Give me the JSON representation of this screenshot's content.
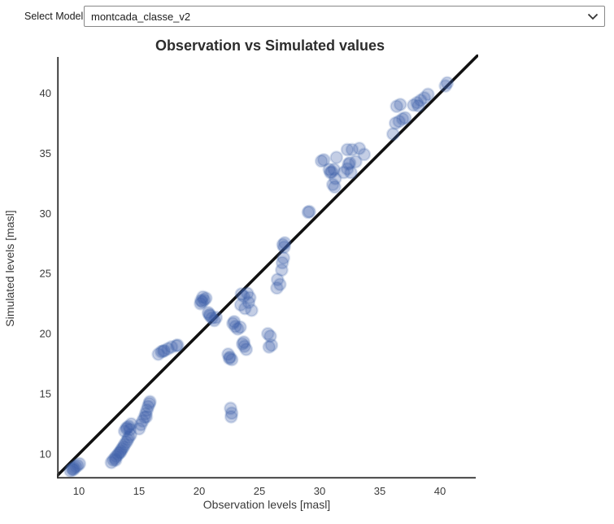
{
  "model_selector": {
    "label": "Select Model:",
    "value": "montcada_classe_v2",
    "chevron_icon": "chevron-down"
  },
  "chart_data": {
    "type": "scatter",
    "title": "Observation vs Simulated values",
    "xlabel": "Observation levels [masl]",
    "ylabel": "Simulated levels [masl]",
    "xlim": [
      8.31,
      42.97
    ],
    "ylim": [
      8.04,
      42.97
    ],
    "x_ticks": [
      10,
      15,
      20,
      25,
      30,
      35,
      40
    ],
    "y_ticks": [
      10,
      15,
      20,
      25,
      30,
      35,
      40
    ],
    "grid": false,
    "legend": "none",
    "identity_line": {
      "shown": true,
      "color": "#111111",
      "width": 3.6
    },
    "marker": {
      "color": "#3a5da8",
      "radius": 7.2,
      "opacity": 0.3
    },
    "series": [
      {
        "name": "observation-vs-simulated",
        "points": [
          [
            9.3,
            8.6
          ],
          [
            9.45,
            8.75
          ],
          [
            9.6,
            8.85
          ],
          [
            9.75,
            8.95
          ],
          [
            9.9,
            9.05
          ],
          [
            10.05,
            9.2
          ],
          [
            9.55,
            8.7
          ],
          [
            12.7,
            9.3
          ],
          [
            12.85,
            9.5
          ],
          [
            13.0,
            9.65
          ],
          [
            13.1,
            9.8
          ],
          [
            13.25,
            9.95
          ],
          [
            13.35,
            10.1
          ],
          [
            13.5,
            10.3
          ],
          [
            13.6,
            10.45
          ],
          [
            13.7,
            10.6
          ],
          [
            13.8,
            10.8
          ],
          [
            13.95,
            11.0
          ],
          [
            14.05,
            11.2
          ],
          [
            14.15,
            11.4
          ],
          [
            14.3,
            11.6
          ],
          [
            13.05,
            9.5
          ],
          [
            13.45,
            10.15
          ],
          [
            13.8,
            11.9
          ],
          [
            13.95,
            12.1
          ],
          [
            14.15,
            12.3
          ],
          [
            14.35,
            12.5
          ],
          [
            14.0,
            12.2
          ],
          [
            14.25,
            12.05
          ],
          [
            15.0,
            12.1
          ],
          [
            15.15,
            12.45
          ],
          [
            15.3,
            12.75
          ],
          [
            15.45,
            13.05
          ],
          [
            15.55,
            13.35
          ],
          [
            15.65,
            13.65
          ],
          [
            15.75,
            13.95
          ],
          [
            15.85,
            14.2
          ],
          [
            15.6,
            13.1
          ],
          [
            15.9,
            14.35
          ],
          [
            16.6,
            18.3
          ],
          [
            16.85,
            18.5
          ],
          [
            17.1,
            18.6
          ],
          [
            17.4,
            18.75
          ],
          [
            17.7,
            18.9
          ],
          [
            18.1,
            19.0
          ],
          [
            17.0,
            18.55
          ],
          [
            18.2,
            19.05
          ],
          [
            20.1,
            22.5
          ],
          [
            20.25,
            22.65
          ],
          [
            20.4,
            22.8
          ],
          [
            20.55,
            22.95
          ],
          [
            20.3,
            23.05
          ],
          [
            20.15,
            22.75
          ],
          [
            20.75,
            21.75
          ],
          [
            20.9,
            21.5
          ],
          [
            21.05,
            21.3
          ],
          [
            21.25,
            21.1
          ],
          [
            21.4,
            21.35
          ],
          [
            20.85,
            21.6
          ],
          [
            22.4,
            18.3
          ],
          [
            22.55,
            18.05
          ],
          [
            22.7,
            17.85
          ],
          [
            22.5,
            17.95
          ],
          [
            23.6,
            19.15
          ],
          [
            23.75,
            18.95
          ],
          [
            23.9,
            18.7
          ],
          [
            23.7,
            19.3
          ],
          [
            22.8,
            20.85
          ],
          [
            23.0,
            20.6
          ],
          [
            23.2,
            20.4
          ],
          [
            23.4,
            20.55
          ],
          [
            22.9,
            21.0
          ],
          [
            23.5,
            23.3
          ],
          [
            23.7,
            23.1
          ],
          [
            24.0,
            23.35
          ],
          [
            24.2,
            23.0
          ],
          [
            23.45,
            22.4
          ],
          [
            23.8,
            22.1
          ],
          [
            24.35,
            21.95
          ],
          [
            24.1,
            22.6
          ],
          [
            25.7,
            20.0
          ],
          [
            25.9,
            19.8
          ],
          [
            25.8,
            18.9
          ],
          [
            26.0,
            19.05
          ],
          [
            26.5,
            24.5
          ],
          [
            26.7,
            24.1
          ],
          [
            26.45,
            23.8
          ],
          [
            26.85,
            25.3
          ],
          [
            26.9,
            25.9
          ],
          [
            27.0,
            26.3
          ],
          [
            27.05,
            27.2
          ],
          [
            27.1,
            27.55
          ],
          [
            26.95,
            27.4
          ],
          [
            22.6,
            13.8
          ],
          [
            22.7,
            13.4
          ],
          [
            22.65,
            13.1
          ],
          [
            29.05,
            30.1
          ],
          [
            29.15,
            30.15
          ],
          [
            30.15,
            34.35
          ],
          [
            30.35,
            34.45
          ],
          [
            30.9,
            33.4
          ],
          [
            31.2,
            33.65
          ],
          [
            31.3,
            32.9
          ],
          [
            31.1,
            32.4
          ],
          [
            31.25,
            32.2
          ],
          [
            31.4,
            34.65
          ],
          [
            32.3,
            35.3
          ],
          [
            32.4,
            34.1
          ],
          [
            32.6,
            33.4
          ],
          [
            32.7,
            35.3
          ],
          [
            33.3,
            35.4
          ],
          [
            33.7,
            34.9
          ],
          [
            32.5,
            34.2
          ],
          [
            33.0,
            34.3
          ],
          [
            32.3,
            33.7
          ],
          [
            32.0,
            33.4
          ],
          [
            30.8,
            33.65
          ],
          [
            31.0,
            33.45
          ],
          [
            36.1,
            36.6
          ],
          [
            36.3,
            37.5
          ],
          [
            36.6,
            37.65
          ],
          [
            36.9,
            37.85
          ],
          [
            37.1,
            37.95
          ],
          [
            36.4,
            38.9
          ],
          [
            36.7,
            39.05
          ],
          [
            37.8,
            39.0
          ],
          [
            38.1,
            39.2
          ],
          [
            38.4,
            39.4
          ],
          [
            38.7,
            39.6
          ],
          [
            38.2,
            38.95
          ],
          [
            39.0,
            39.9
          ],
          [
            40.45,
            40.6
          ],
          [
            40.6,
            40.85
          ]
        ]
      }
    ]
  }
}
